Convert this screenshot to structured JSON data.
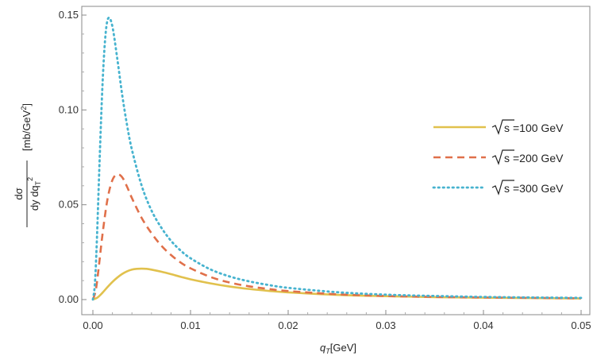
{
  "chart_data": {
    "type": "line",
    "xlabel": "q_T[GeV]",
    "xlabel_main": "q",
    "xlabel_sub": "T",
    "xlabel_unit": "[GeV]",
    "ylabel_num": "dσ",
    "ylabel_den": "dy dq",
    "ylabel_den_sub": "T",
    "ylabel_den_sup": "2",
    "ylabel_unit": "[mb/GeV",
    "ylabel_unit_sup": "2",
    "ylabel_unit_close": "]",
    "xlim": [
      0,
      0.05
    ],
    "ylim": [
      -0.008,
      0.155
    ],
    "x_ticks": [
      "0.00",
      "0.01",
      "0.02",
      "0.03",
      "0.04",
      "0.05"
    ],
    "x_tick_values": [
      0,
      0.01,
      0.02,
      0.03,
      0.04,
      0.05
    ],
    "y_ticks": [
      "0.00",
      "0.05",
      "0.10",
      "0.15"
    ],
    "y_tick_values": [
      0,
      0.05,
      0.1,
      0.15
    ],
    "legend_position": "right",
    "series": [
      {
        "name": "√s =100 GeV",
        "legend_prefix": "s",
        "legend_suffix": "=100 GeV",
        "color": "#e1c14d",
        "style": "solid",
        "x": [
          0,
          0.0005,
          0.001,
          0.0015,
          0.002,
          0.0025,
          0.003,
          0.0035,
          0.004,
          0.0045,
          0.005,
          0.0055,
          0.006,
          0.007,
          0.008,
          0.009,
          0.01,
          0.012,
          0.014,
          0.016,
          0.018,
          0.02,
          0.025,
          0.03,
          0.035,
          0.04,
          0.045,
          0.05
        ],
        "y": [
          0,
          0.0012,
          0.0037,
          0.0066,
          0.0093,
          0.0116,
          0.0135,
          0.0149,
          0.0158,
          0.0162,
          0.0163,
          0.0162,
          0.0158,
          0.0147,
          0.0134,
          0.012,
          0.0107,
          0.0086,
          0.0069,
          0.0056,
          0.0046,
          0.0038,
          0.0025,
          0.0018,
          0.0013,
          0.001,
          0.0008,
          0.0006
        ]
      },
      {
        "name": "√s =200 GeV",
        "legend_prefix": "s",
        "legend_suffix": "=200 GeV",
        "color": "#e0704a",
        "style": "dashed",
        "x": [
          0,
          0.0003,
          0.0006,
          0.001,
          0.0015,
          0.002,
          0.0025,
          0.003,
          0.0035,
          0.004,
          0.005,
          0.006,
          0.007,
          0.008,
          0.009,
          0.01,
          0.012,
          0.014,
          0.016,
          0.018,
          0.02,
          0.025,
          0.03,
          0.035,
          0.04,
          0.045,
          0.05
        ],
        "y": [
          0,
          0.005,
          0.017,
          0.035,
          0.053,
          0.063,
          0.066,
          0.0645,
          0.0595,
          0.0535,
          0.043,
          0.035,
          0.0285,
          0.0235,
          0.0195,
          0.0165,
          0.012,
          0.009,
          0.007,
          0.0056,
          0.0045,
          0.0028,
          0.0019,
          0.0014,
          0.0011,
          0.0009,
          0.0007
        ]
      },
      {
        "name": "√s =300 GeV",
        "legend_prefix": "s",
        "legend_suffix": "=300 GeV",
        "color": "#47b3cf",
        "style": "dotted",
        "x": [
          0,
          0.0002,
          0.0004,
          0.0007,
          0.001,
          0.0013,
          0.0016,
          0.002,
          0.0025,
          0.003,
          0.0035,
          0.004,
          0.005,
          0.006,
          0.007,
          0.008,
          0.009,
          0.01,
          0.012,
          0.014,
          0.016,
          0.018,
          0.02,
          0.025,
          0.03,
          0.035,
          0.04,
          0.045,
          0.05
        ],
        "y": [
          0,
          0.008,
          0.03,
          0.075,
          0.115,
          0.14,
          0.1485,
          0.144,
          0.127,
          0.108,
          0.092,
          0.079,
          0.06,
          0.047,
          0.038,
          0.031,
          0.0258,
          0.0218,
          0.016,
          0.0122,
          0.0096,
          0.0077,
          0.0062,
          0.0039,
          0.0026,
          0.0019,
          0.0014,
          0.0011,
          0.0009
        ]
      }
    ]
  }
}
